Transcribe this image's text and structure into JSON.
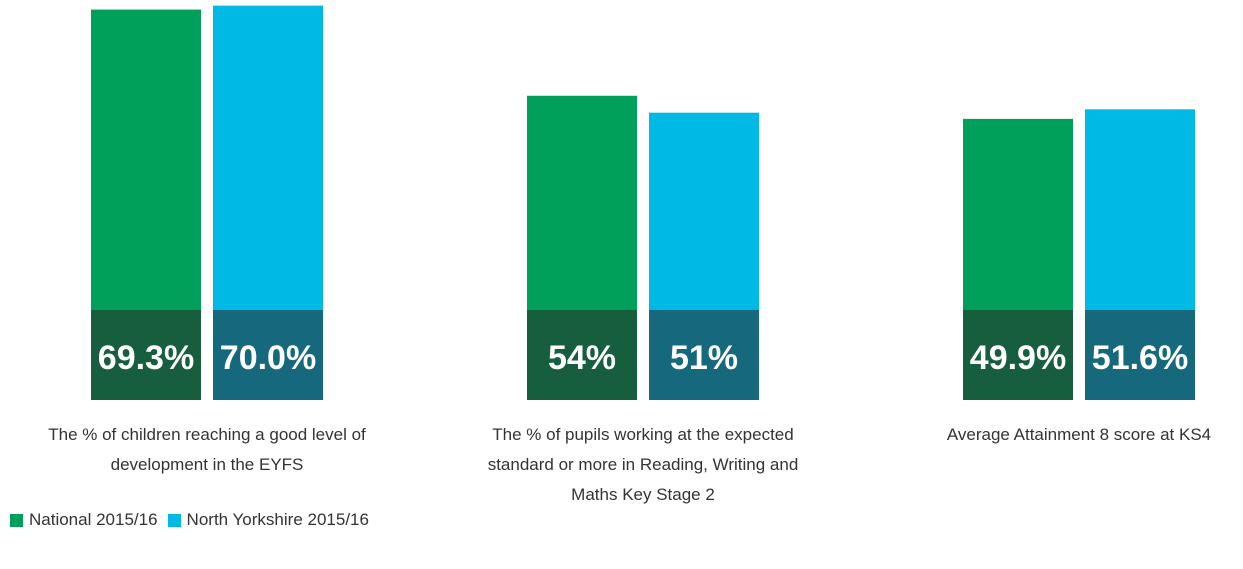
{
  "chart_data": {
    "type": "bar",
    "categories": [
      "The % of children reaching a good level of development in the EYFS",
      "The % of pupils working at the expected standard or more in Reading, Writing and Maths Key Stage 2",
      "Average Attainment 8 score at KS4"
    ],
    "series": [
      {
        "name": "National 2015/16",
        "color": "#00a05a",
        "values": [
          69.3,
          54,
          49.9
        ],
        "value_labels": [
          "69.3%",
          "54%",
          "49.9%"
        ]
      },
      {
        "name": "North Yorkshire 2015/16",
        "color": "#00b9e4",
        "values": [
          70.0,
          51,
          51.6
        ],
        "value_labels": [
          "70.0%",
          "51%",
          "51.6%"
        ]
      }
    ],
    "ylim": [
      0,
      71
    ],
    "legend": "bottom-left"
  }
}
